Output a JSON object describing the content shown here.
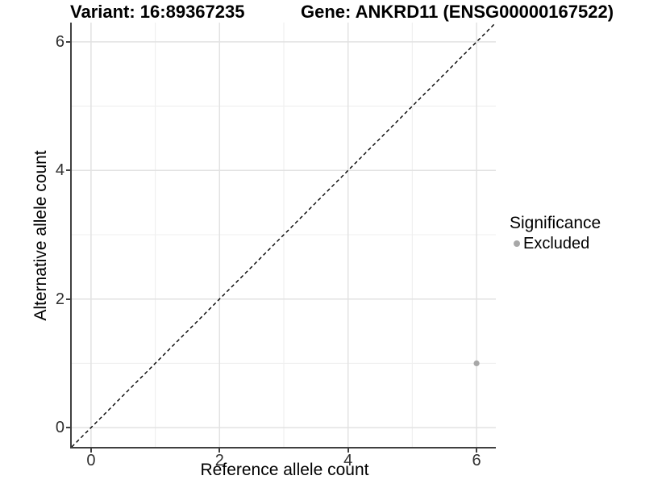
{
  "header": {
    "variant_title": "Variant: 16:89367235",
    "gene_title": "Gene: ANKRD11 (ENSG00000167522)"
  },
  "legend": {
    "title": "Significance",
    "items": [
      {
        "label": "Excluded",
        "color": "#a8a8a8"
      }
    ]
  },
  "chart_data": {
    "type": "scatter",
    "title": "Variant: 16:89367235   Gene: ANKRD11 (ENSG00000167522)",
    "xlabel": "Reference allele count",
    "ylabel": "Alternative allele count",
    "xlim": [
      -0.3,
      6.3
    ],
    "ylim": [
      -0.3,
      6.3
    ],
    "x_major_ticks": [
      0,
      2,
      4,
      6
    ],
    "y_major_ticks": [
      0,
      2,
      4,
      6
    ],
    "x_minor_ticks": [
      1,
      3,
      5
    ],
    "y_minor_ticks": [
      1,
      3,
      5
    ],
    "grid": true,
    "legend_position": "right",
    "series": [
      {
        "name": "Excluded",
        "color": "#a8a8a8",
        "points": [
          {
            "x": 6,
            "y": 1
          }
        ]
      }
    ],
    "reference_line": {
      "type": "identity",
      "from": [
        -0.3,
        -0.3
      ],
      "to": [
        6.3,
        6.3
      ],
      "style": "dashed",
      "color": "#000000"
    }
  },
  "style": {
    "grid_major_color": "#e2e2e2",
    "grid_minor_color": "#efefef",
    "axis_line_color": "#404040",
    "tick_color": "#404040",
    "point_radius": 3.6,
    "ref_dash": "4.5 3.5"
  }
}
